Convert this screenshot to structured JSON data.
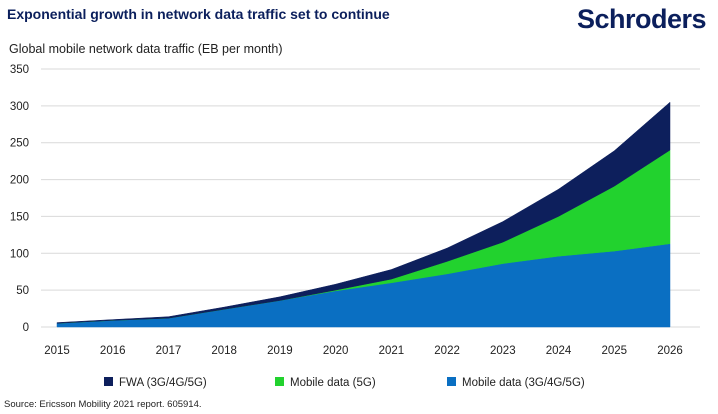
{
  "header": {
    "title": "Exponential growth in network data traffic set to continue",
    "logo": "Schroders"
  },
  "footer": {
    "source": "Source: Ericsson Mobility 2021 report. 605914."
  },
  "colors": {
    "fwa": "#0d1f5c",
    "mobile_5g": "#22d22e",
    "mobile_3g4g5g": "#0a6fc2",
    "grid": "#d9d9d9"
  },
  "chart_data": {
    "type": "area",
    "stacked": true,
    "title": "Global mobile network data traffic (EB per month)",
    "xlabel": "",
    "ylabel": "",
    "x": [
      2015,
      2016,
      2017,
      2018,
      2019,
      2020,
      2021,
      2022,
      2023,
      2024,
      2025,
      2026
    ],
    "ylim": [
      0,
      350
    ],
    "yticks": [
      0,
      50,
      100,
      150,
      200,
      250,
      300,
      350
    ],
    "grid": true,
    "legend_position": "bottom",
    "series": [
      {
        "name": "Mobile data (3G/4G/5G)",
        "color_key": "mobile_3g4g5g",
        "values": [
          5,
          9,
          12,
          24,
          36,
          49,
          60,
          72,
          86,
          96,
          103,
          113
        ]
      },
      {
        "name": "Mobile data (5G)",
        "color_key": "mobile_5g",
        "values": [
          0,
          0,
          0,
          0,
          0,
          1,
          5,
          17,
          29,
          54,
          88,
          127
        ]
      },
      {
        "name": "FWA (3G/4G/5G)",
        "color_key": "fwa",
        "values": [
          1,
          1,
          2,
          3,
          5,
          8,
          13,
          18,
          28,
          37,
          48,
          65
        ]
      }
    ]
  }
}
